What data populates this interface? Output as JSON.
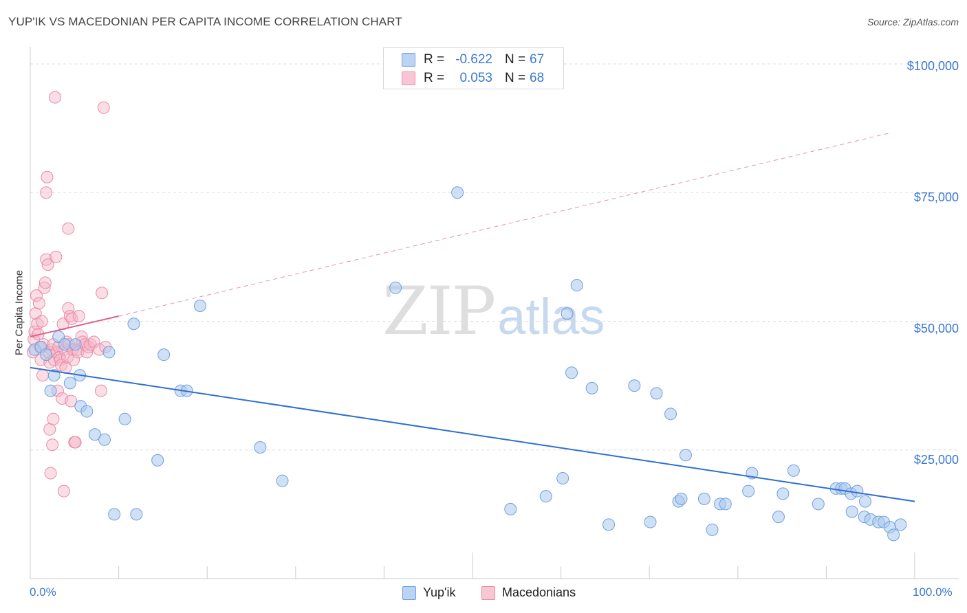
{
  "header": {
    "title": "YUP'IK VS MACEDONIAN PER CAPITA INCOME CORRELATION CHART",
    "source": "Source: ZipAtlas.com"
  },
  "watermark": {
    "zip": "ZIP",
    "atlas": "atlas"
  },
  "stats": [
    {
      "r_label": "R =",
      "r_value": "-0.622",
      "n_label": "N =",
      "n_value": "67"
    },
    {
      "r_label": "R =",
      "r_value": "0.053",
      "n_label": "N =",
      "n_value": "68"
    }
  ],
  "colors": {
    "blue_fill": "#a9c8ef",
    "blue_stroke": "#6f9fdf",
    "blue_line": "#2f6fd0",
    "pink_fill": "#f5b5c8",
    "pink_stroke": "#e98aa6",
    "pink_line": "#e0608a",
    "grid": "#dddddd",
    "accent_text": "#3b78d4"
  },
  "chart_data": {
    "type": "scatter",
    "title": "YUP'IK VS MACEDONIAN PER CAPITA INCOME CORRELATION CHART",
    "xlabel": "",
    "ylabel": "Per Capita Income",
    "xlim": [
      0,
      100
    ],
    "ylim": [
      0,
      102000
    ],
    "x_tick_labels": [
      "0.0%",
      "100.0%"
    ],
    "y_ticks": [
      25000,
      50000,
      75000,
      100000
    ],
    "y_tick_labels": [
      "$25,000",
      "$50,000",
      "$75,000",
      "$100,000"
    ],
    "legend": [
      "Yup'ik",
      "Macedonians"
    ],
    "series": [
      {
        "name": "Yup'ik",
        "r": -0.622,
        "n": 67,
        "trend": {
          "x": [
            0,
            100
          ],
          "y": [
            41000,
            15000
          ],
          "style": "solid"
        },
        "points": [
          [
            0.5,
            44500
          ],
          [
            1.2,
            45000
          ],
          [
            1.8,
            43500
          ],
          [
            2.3,
            36500
          ],
          [
            2.7,
            39500
          ],
          [
            3.2,
            47000
          ],
          [
            3.9,
            45500
          ],
          [
            4.5,
            38000
          ],
          [
            5.1,
            45500
          ],
          [
            5.6,
            39500
          ],
          [
            5.7,
            33500
          ],
          [
            6.4,
            32500
          ],
          [
            7.3,
            28000
          ],
          [
            8.4,
            27000
          ],
          [
            8.9,
            44000
          ],
          [
            9.5,
            12500
          ],
          [
            10.7,
            31000
          ],
          [
            11.7,
            49500
          ],
          [
            12.0,
            12500
          ],
          [
            14.4,
            23000
          ],
          [
            15.1,
            43500
          ],
          [
            17.0,
            36500
          ],
          [
            17.7,
            36500
          ],
          [
            19.2,
            53000
          ],
          [
            26.0,
            25500
          ],
          [
            28.5,
            19000
          ],
          [
            41.3,
            56500
          ],
          [
            48.3,
            75000
          ],
          [
            54.3,
            13500
          ],
          [
            58.3,
            16000
          ],
          [
            60.2,
            19500
          ],
          [
            60.7,
            51500
          ],
          [
            61.2,
            40000
          ],
          [
            61.8,
            57000
          ],
          [
            63.5,
            37000
          ],
          [
            65.4,
            10500
          ],
          [
            68.3,
            37500
          ],
          [
            70.1,
            11000
          ],
          [
            70.8,
            36000
          ],
          [
            72.4,
            32000
          ],
          [
            73.3,
            15000
          ],
          [
            73.6,
            15500
          ],
          [
            74.1,
            24000
          ],
          [
            76.2,
            15500
          ],
          [
            77.1,
            9500
          ],
          [
            78.0,
            14500
          ],
          [
            78.6,
            14500
          ],
          [
            81.2,
            17000
          ],
          [
            81.6,
            20500
          ],
          [
            84.6,
            12000
          ],
          [
            85.1,
            16500
          ],
          [
            86.3,
            21000
          ],
          [
            89.1,
            14500
          ],
          [
            91.1,
            17500
          ],
          [
            91.7,
            17500
          ],
          [
            92.1,
            17500
          ],
          [
            92.9,
            13000
          ],
          [
            92.8,
            16500
          ],
          [
            93.5,
            17000
          ],
          [
            94.4,
            15000
          ],
          [
            94.3,
            12000
          ],
          [
            95.0,
            11500
          ],
          [
            95.9,
            11000
          ],
          [
            96.5,
            11000
          ],
          [
            97.2,
            10000
          ],
          [
            97.6,
            8500
          ],
          [
            98.4,
            10500
          ]
        ]
      },
      {
        "name": "Macedonians",
        "r": 0.053,
        "n": 68,
        "trend": {
          "x": [
            0,
            10
          ],
          "y": [
            47000,
            51000
          ],
          "style": "solid",
          "extended": {
            "x": [
              10,
              97
            ],
            "y": [
              51000,
              86500
            ],
            "style": "dashed"
          }
        },
        "points": [
          [
            0.3,
            44000
          ],
          [
            0.4,
            46500
          ],
          [
            0.5,
            48000
          ],
          [
            0.6,
            51500
          ],
          [
            0.7,
            55000
          ],
          [
            0.8,
            49500
          ],
          [
            0.9,
            47500
          ],
          [
            1.0,
            53500
          ],
          [
            1.1,
            45000
          ],
          [
            1.2,
            42500
          ],
          [
            1.3,
            50000
          ],
          [
            1.4,
            39500
          ],
          [
            1.5,
            45500
          ],
          [
            1.6,
            56500
          ],
          [
            1.7,
            57500
          ],
          [
            1.8,
            62000
          ],
          [
            1.8,
            75000
          ],
          [
            1.9,
            78000
          ],
          [
            2.0,
            61000
          ],
          [
            2.1,
            44000
          ],
          [
            2.2,
            42000
          ],
          [
            2.2,
            29000
          ],
          [
            2.3,
            20500
          ],
          [
            2.4,
            44500
          ],
          [
            2.5,
            26000
          ],
          [
            2.6,
            45500
          ],
          [
            2.6,
            31000
          ],
          [
            2.7,
            42500
          ],
          [
            2.8,
            93500
          ],
          [
            2.9,
            62500
          ],
          [
            3.0,
            44000
          ],
          [
            3.1,
            36500
          ],
          [
            3.2,
            45000
          ],
          [
            3.3,
            43000
          ],
          [
            3.4,
            42500
          ],
          [
            3.5,
            41500
          ],
          [
            3.6,
            35000
          ],
          [
            3.7,
            49500
          ],
          [
            3.8,
            17000
          ],
          [
            3.9,
            44500
          ],
          [
            4.0,
            41000
          ],
          [
            4.1,
            46000
          ],
          [
            4.2,
            43000
          ],
          [
            4.3,
            52500
          ],
          [
            4.3,
            68000
          ],
          [
            4.4,
            45500
          ],
          [
            4.5,
            51000
          ],
          [
            4.6,
            34500
          ],
          [
            4.7,
            50500
          ],
          [
            4.8,
            44500
          ],
          [
            4.9,
            42500
          ],
          [
            5.0,
            26500
          ],
          [
            5.1,
            26500
          ],
          [
            5.3,
            44500
          ],
          [
            5.4,
            44000
          ],
          [
            5.5,
            51000
          ],
          [
            5.8,
            47000
          ],
          [
            5.9,
            46000
          ],
          [
            6.2,
            45500
          ],
          [
            6.4,
            44000
          ],
          [
            6.6,
            45000
          ],
          [
            6.8,
            45500
          ],
          [
            7.2,
            46000
          ],
          [
            7.8,
            44500
          ],
          [
            8.0,
            36500
          ],
          [
            8.1,
            55500
          ],
          [
            8.3,
            91500
          ],
          [
            8.5,
            45000
          ]
        ]
      }
    ]
  }
}
